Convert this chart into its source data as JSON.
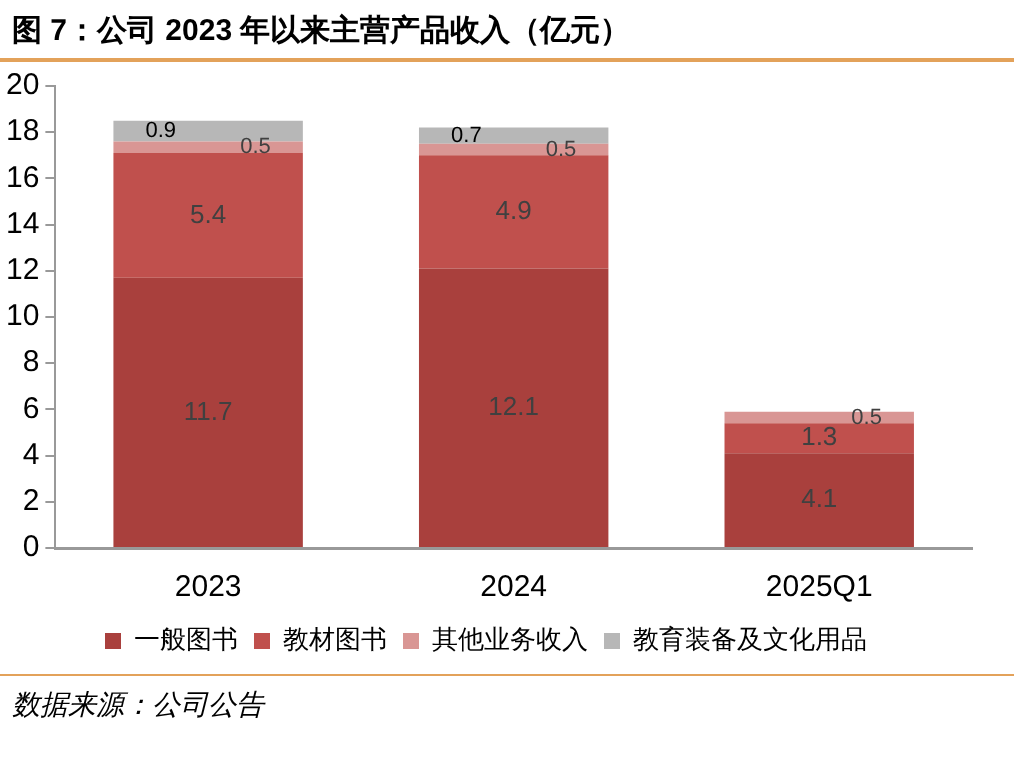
{
  "chart_data": {
    "type": "bar",
    "title": "图 7：公司 2023 年以来主营产品收入（亿元）",
    "categories": [
      "2023",
      "2024",
      "2025Q1"
    ],
    "series": [
      {
        "name": "一般图书",
        "color": "#a9403d",
        "values": [
          11.7,
          12.1,
          4.1
        ]
      },
      {
        "name": "教材图书",
        "color": "#c0504d",
        "values": [
          5.4,
          4.9,
          1.3
        ]
      },
      {
        "name": "其他业务收入",
        "color": "#d99694",
        "values": [
          0.5,
          0.5,
          0.5
        ]
      },
      {
        "name": "教育装备及文化用品",
        "color": "#b7b7b7",
        "values": [
          0.9,
          0.7,
          null
        ]
      }
    ],
    "stacked": true,
    "ylim": [
      0,
      20
    ],
    "yticks": [
      0,
      2,
      4,
      6,
      8,
      10,
      12,
      14,
      16,
      18,
      20
    ],
    "grid": false,
    "legend": "bottom",
    "data_labels": true,
    "annotations": [
      "数据来源：公司公告"
    ]
  }
}
